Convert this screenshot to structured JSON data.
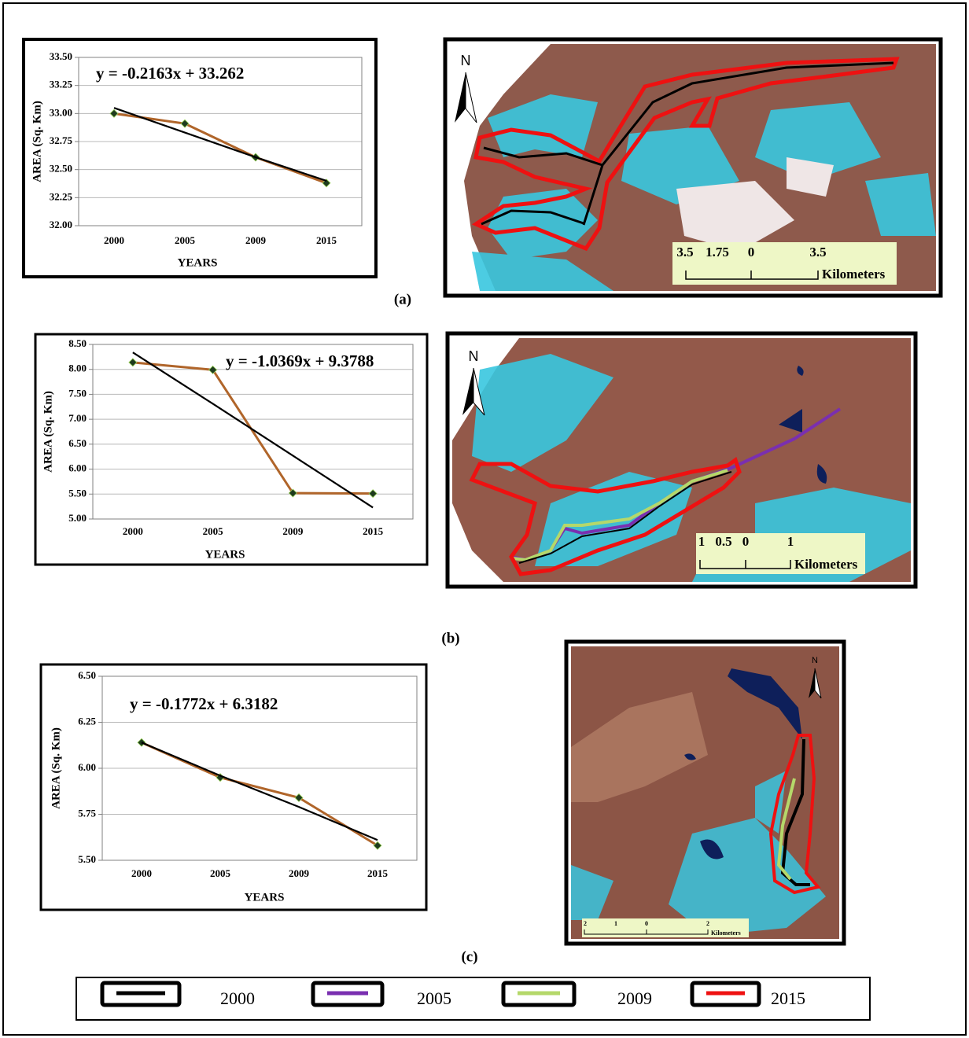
{
  "chart_data": [
    {
      "type": "line",
      "categories": [
        "2000",
        "2005",
        "2009",
        "2015"
      ],
      "series": [
        {
          "color": "#b0652a",
          "marker": "#1e3b1e",
          "values": [
            33.0,
            32.91,
            32.61,
            32.38
          ]
        },
        {
          "color": "#000000",
          "values": [
            33.05,
            32.83,
            32.61,
            32.4
          ]
        }
      ],
      "ylim": [
        32,
        33.5
      ],
      "yticks": [
        {
          "value": 32,
          "label": "32.00"
        },
        32.25,
        {
          "value": 32.5,
          "label": "32.50"
        },
        32.75,
        {
          "value": 33,
          "label": "33.00"
        },
        33.25,
        {
          "value": 33.5,
          "label": "33.50"
        }
      ],
      "ylabel": "AREA (Sq. Km)",
      "xlabel": "YEARS",
      "annotation": "y = -0.2163x + 33.262",
      "grid": true
    },
    {
      "type": "line",
      "categories": [
        "2000",
        "2005",
        "2009",
        "2015"
      ],
      "series": [
        {
          "color": "#b0652a",
          "marker": "#1e3b1e",
          "values": [
            8.14,
            7.99,
            5.52,
            5.51
          ]
        },
        {
          "color": "#000000",
          "values": [
            8.34,
            7.31,
            6.27,
            5.23
          ]
        }
      ],
      "ylim": [
        5,
        8.5
      ],
      "yticks": [
        {
          "value": 5,
          "label": "5.00"
        },
        {
          "value": 5.5,
          "label": "5.50"
        },
        {
          "value": 6,
          "label": "6.00"
        },
        {
          "value": 6.5,
          "label": "6.50"
        },
        {
          "value": 7,
          "label": "7.00"
        },
        {
          "value": 7.5,
          "label": "7.50"
        },
        {
          "value": 8,
          "label": "8.00"
        },
        {
          "value": 8.5,
          "label": "8.50"
        }
      ],
      "ylabel": "AREA (Sq. Km)",
      "xlabel": "YEARS",
      "annotation": "y = -1.0369x + 9.3788",
      "grid": true
    },
    {
      "type": "line",
      "categories": [
        "2000",
        "2005",
        "2009",
        "2015"
      ],
      "series": [
        {
          "color": "#b0652a",
          "marker": "#1e3b1e",
          "values": [
            6.14,
            5.95,
            5.84,
            5.58
          ]
        },
        {
          "color": "#000000",
          "values": [
            6.14,
            5.96,
            5.79,
            5.61
          ]
        }
      ],
      "ylim": [
        5.5,
        6.5
      ],
      "yticks": [
        {
          "value": 5.5,
          "label": "5.50"
        },
        5.75,
        {
          "value": 6,
          "label": "6.00"
        },
        6.25,
        {
          "value": 6.5,
          "label": "6.50"
        }
      ],
      "ylabel": "AREA (Sq. Km)",
      "xlabel": "YEARS",
      "annotation": "y = -0.1772x + 6.3182",
      "grid": true
    }
  ],
  "panels": [
    "(a)",
    "(b)",
    "(c)"
  ],
  "maps": [
    {
      "north": "N",
      "scale_labels": [
        "3.5",
        "1.75",
        "0",
        "3.5"
      ],
      "unit": "Kilometers"
    },
    {
      "north": "N",
      "scale_labels": [
        "1",
        "0.5",
        "0",
        "1"
      ],
      "unit": "Kilometers"
    },
    {
      "north": "N",
      "scale_labels": [
        "2",
        "1",
        "0",
        "2"
      ],
      "unit": "Kilometers"
    }
  ],
  "legend": [
    {
      "label": "2000",
      "color": "#000000"
    },
    {
      "label": "2005",
      "color": "#7a2fb0"
    },
    {
      "label": "2009",
      "color": "#b5d86a"
    },
    {
      "label": "2015",
      "color": "#ee1111"
    }
  ]
}
